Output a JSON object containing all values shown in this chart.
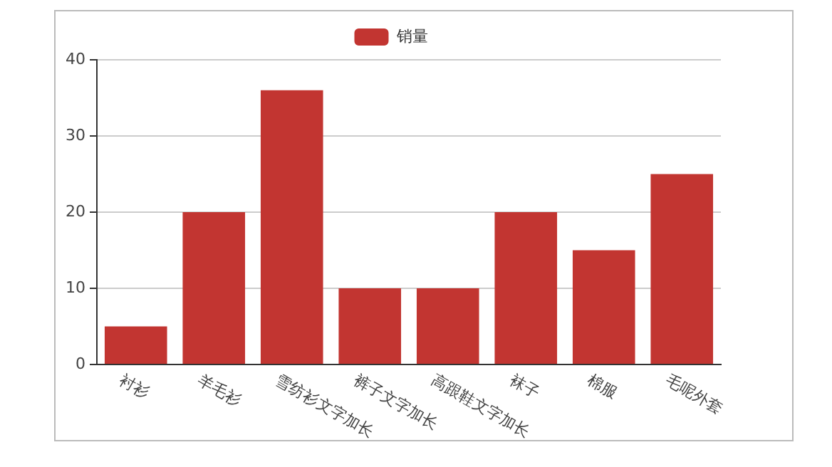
{
  "chart_data": {
    "type": "bar",
    "categories": [
      "衬衫",
      "羊毛衫",
      "雪纺衫文字加长",
      "裤子文字加长",
      "高跟鞋文字加长",
      "袜子",
      "棉服",
      "毛呢外套"
    ],
    "series": [
      {
        "name": "销量",
        "color": "#c23531",
        "values": [
          5,
          20,
          36,
          10,
          10,
          20,
          15,
          25
        ]
      }
    ],
    "ylim": [
      0,
      40
    ],
    "yticks": [
      0,
      10,
      20,
      30,
      40
    ],
    "grid": "y",
    "legend": "top"
  }
}
